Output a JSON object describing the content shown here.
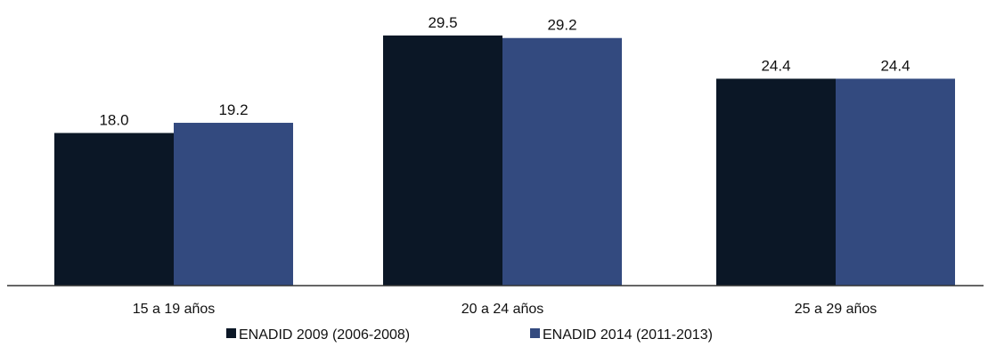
{
  "chart_data": {
    "type": "bar",
    "categories": [
      "15 a 19 años",
      "20 a 24 años",
      "25 a 29 años"
    ],
    "series": [
      {
        "name": "ENADID 2009 (2006-2008)",
        "values": [
          18.0,
          29.5,
          24.4
        ],
        "labels": [
          "18.0",
          "29.5",
          "24.4"
        ],
        "color": "#0b1726"
      },
      {
        "name": "ENADID 2014 (2011-2013)",
        "values": [
          19.2,
          29.2,
          24.4
        ],
        "labels": [
          "19.2",
          "29.2",
          "24.4"
        ],
        "color": "#334a7f"
      }
    ],
    "title": "",
    "xlabel": "",
    "ylabel": "",
    "ylim": [
      0,
      30
    ],
    "grid": false,
    "legend": "bottom"
  }
}
